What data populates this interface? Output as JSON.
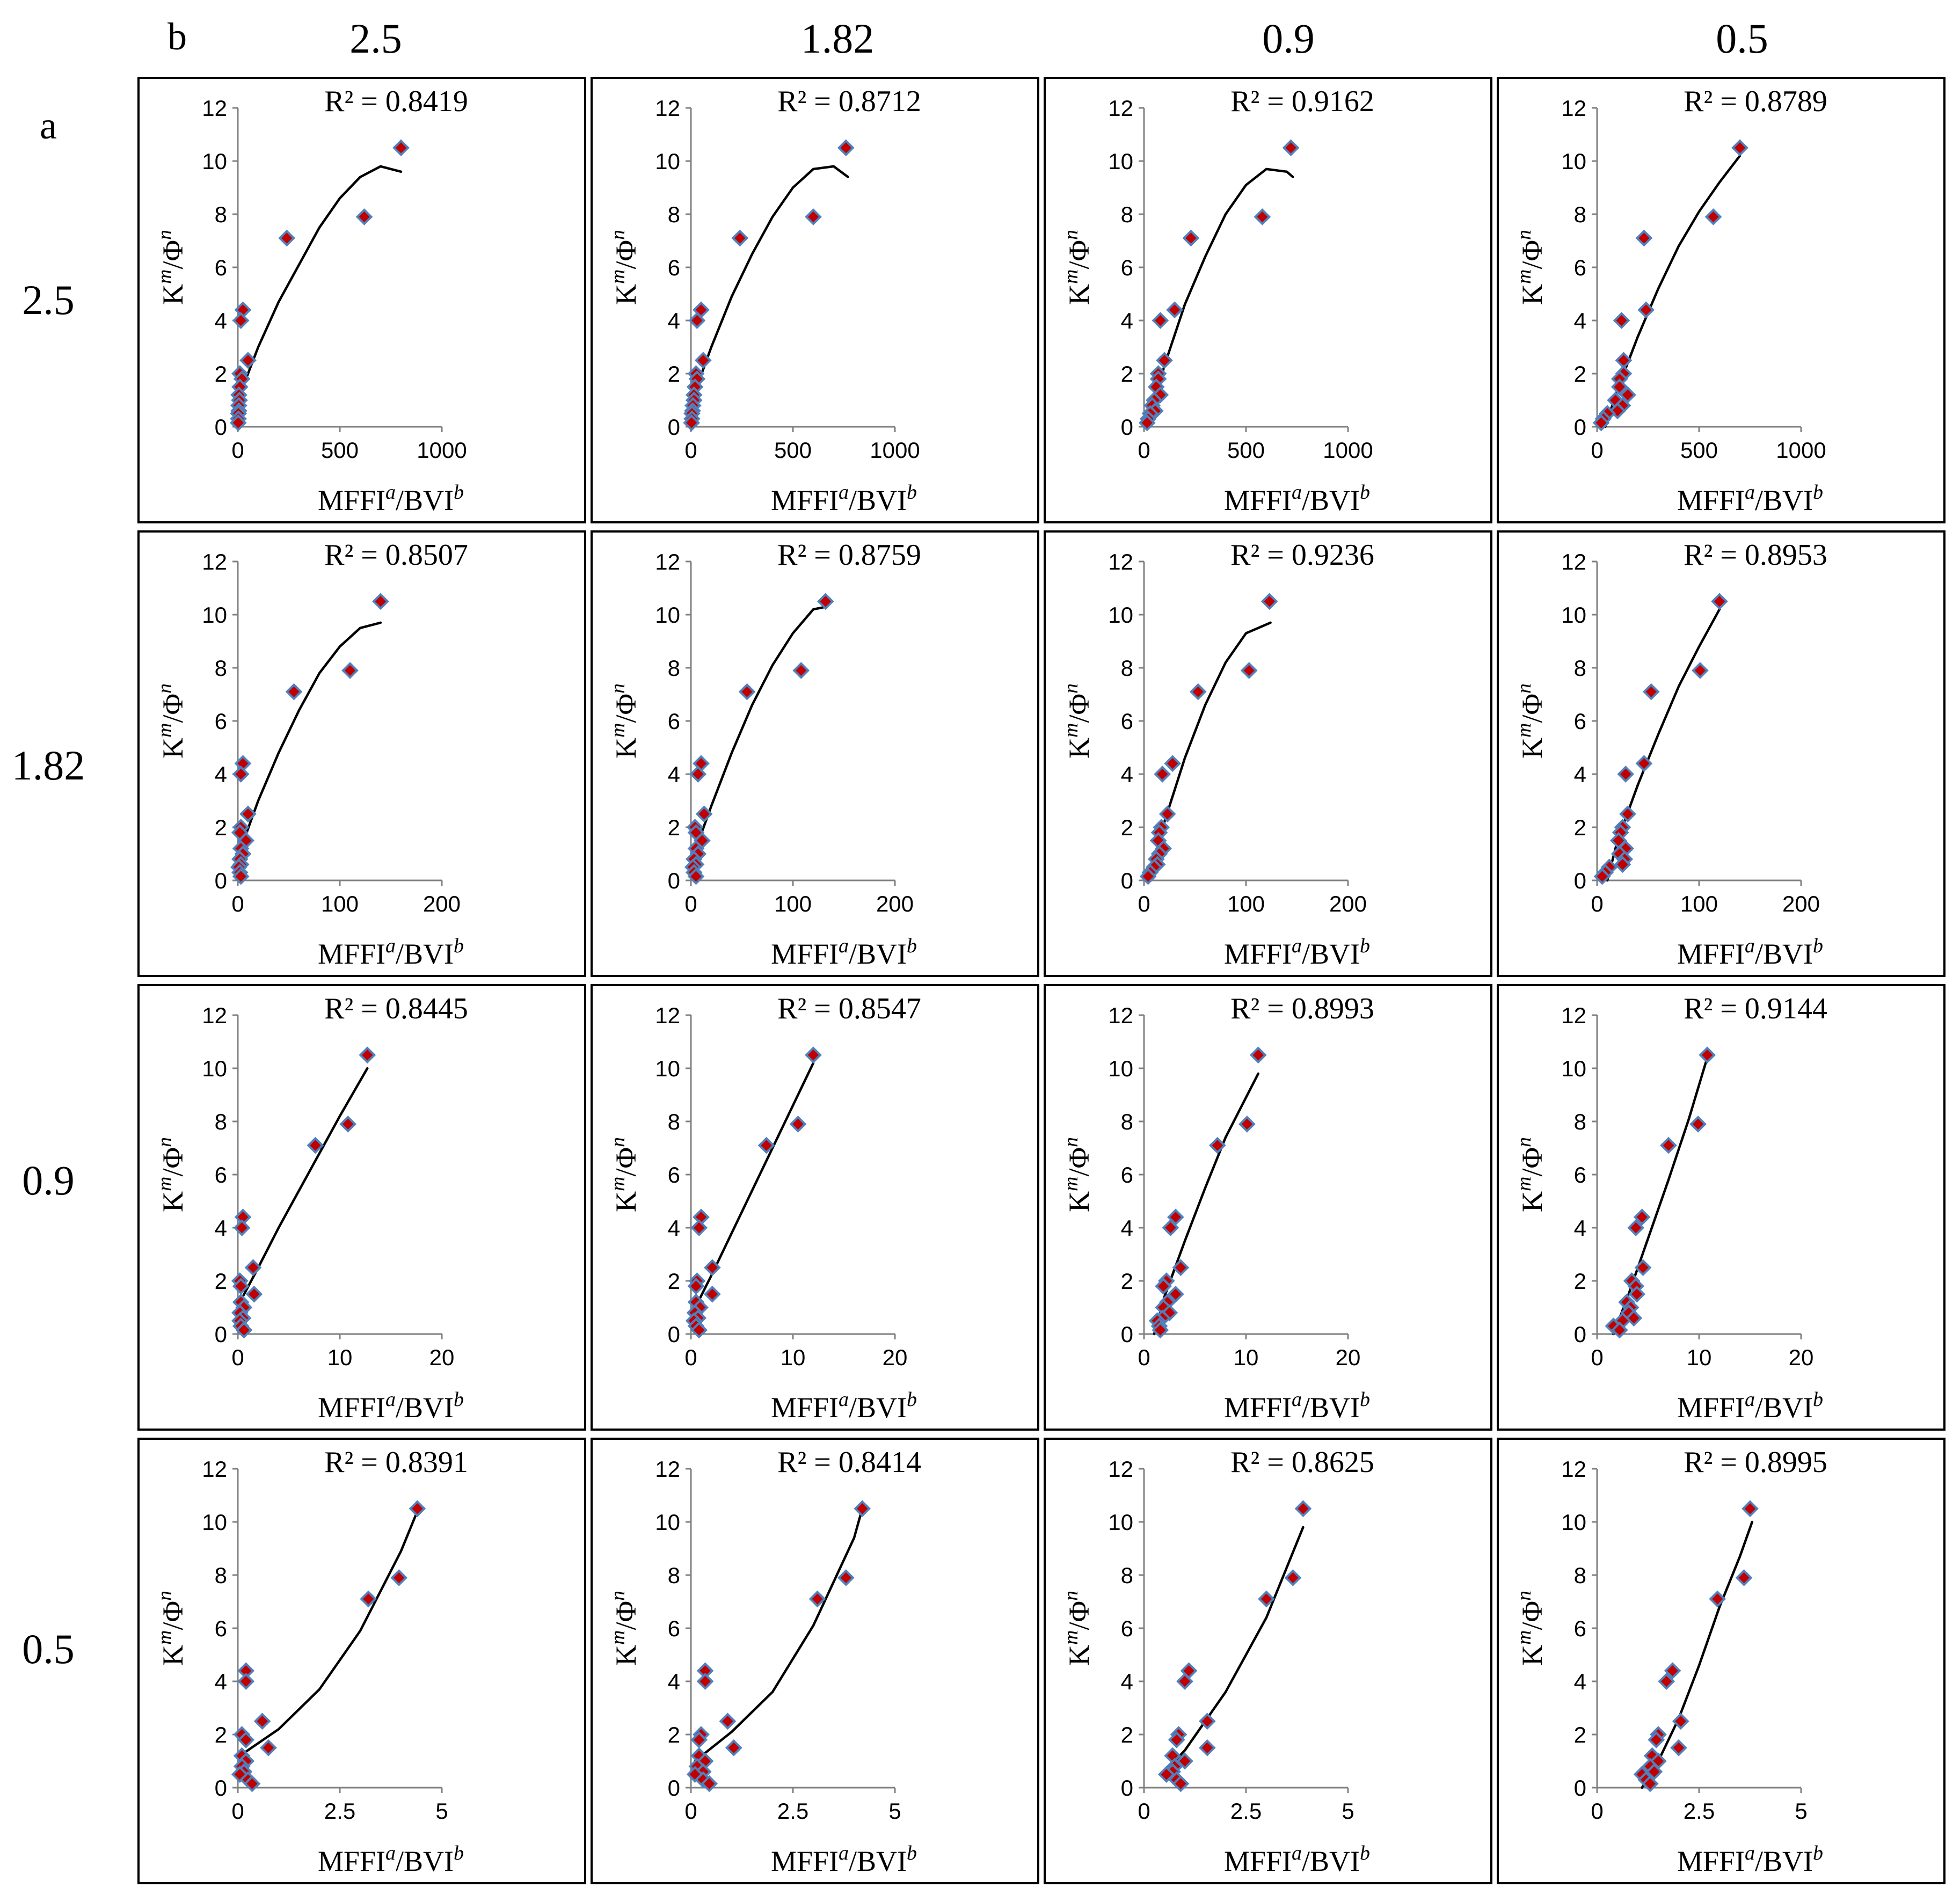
{
  "figure": {
    "corner_label_b": "b",
    "corner_label_a": "a",
    "col_headers": [
      "2.5",
      "1.82",
      "0.9",
      "0.5"
    ],
    "row_headers": [
      "2.5",
      "1.82",
      "0.9",
      "0.5"
    ],
    "xlabel": "MFFI",
    "xlabel_sup1": "a",
    "xlabel_mid": "/BVI",
    "xlabel_sup2": "b",
    "ylabel": "K",
    "ylabel_sup1": "m",
    "ylabel_mid": "/Φ",
    "ylabel_sup2": "n",
    "marker_fill": "#c00000",
    "marker_stroke": "#4f81bd",
    "line_color": "#000000"
  },
  "chart_data": {
    "type": "scatter",
    "y_values": [
      10.5,
      7.9,
      7.1,
      4.4,
      4.0,
      2.5,
      2.0,
      1.8,
      1.5,
      1.2,
      1.0,
      0.8,
      0.6,
      0.5,
      0.3,
      0.15
    ],
    "ylim": [
      0,
      12
    ],
    "yticks": [
      0,
      2,
      4,
      6,
      8,
      10,
      12
    ],
    "panels": [
      {
        "r2": "R² = 0.8419",
        "xlim": [
          0,
          1000
        ],
        "xticks": [
          "0",
          "500",
          "1000"
        ],
        "x_values": [
          800,
          620,
          240,
          25,
          15,
          50,
          10,
          20,
          10,
          5,
          8,
          5,
          5,
          3,
          3,
          2
        ],
        "trend": [
          [
            5,
            1.1
          ],
          [
            100,
            3.0
          ],
          [
            200,
            4.7
          ],
          [
            300,
            6.1
          ],
          [
            400,
            7.5
          ],
          [
            500,
            8.6
          ],
          [
            600,
            9.4
          ],
          [
            700,
            9.8
          ],
          [
            800,
            9.6
          ]
        ]
      },
      {
        "r2": "R² = 0.8712",
        "xlim": [
          0,
          1000
        ],
        "xticks": [
          "0",
          "500",
          "1000"
        ],
        "x_values": [
          760,
          600,
          240,
          50,
          30,
          60,
          25,
          30,
          20,
          15,
          15,
          10,
          8,
          5,
          5,
          3
        ],
        "trend": [
          [
            5,
            1.0
          ],
          [
            100,
            3.0
          ],
          [
            200,
            4.9
          ],
          [
            300,
            6.5
          ],
          [
            400,
            7.9
          ],
          [
            500,
            9.0
          ],
          [
            600,
            9.7
          ],
          [
            700,
            9.8
          ],
          [
            770,
            9.4
          ]
        ]
      },
      {
        "r2": "R² = 0.9162",
        "xlim": [
          0,
          1000
        ],
        "xticks": [
          "0",
          "500",
          "1000"
        ],
        "x_values": [
          720,
          580,
          230,
          150,
          80,
          100,
          70,
          70,
          60,
          80,
          50,
          40,
          55,
          30,
          20,
          15
        ],
        "trend": [
          [
            20,
            0.0
          ],
          [
            100,
            2.3
          ],
          [
            200,
            4.6
          ],
          [
            300,
            6.4
          ],
          [
            400,
            8.0
          ],
          [
            500,
            9.1
          ],
          [
            600,
            9.7
          ],
          [
            700,
            9.6
          ],
          [
            730,
            9.4
          ]
        ]
      },
      {
        "r2": "R² = 0.8789",
        "xlim": [
          0,
          1000
        ],
        "xticks": [
          "0",
          "500",
          "1000"
        ],
        "x_values": [
          700,
          570,
          230,
          240,
          120,
          130,
          130,
          110,
          110,
          150,
          90,
          125,
          100,
          50,
          30,
          20
        ],
        "trend": [
          [
            40,
            0.0
          ],
          [
            100,
            1.4
          ],
          [
            200,
            3.4
          ],
          [
            300,
            5.2
          ],
          [
            400,
            6.8
          ],
          [
            500,
            8.1
          ],
          [
            600,
            9.2
          ],
          [
            700,
            10.2
          ]
        ]
      },
      {
        "r2": "R² = 0.8507",
        "xlim": [
          0,
          200
        ],
        "xticks": [
          "0",
          "100",
          "200"
        ],
        "x_values": [
          140,
          110,
          55,
          5,
          3,
          10,
          3,
          2,
          8,
          3,
          5,
          2,
          3,
          1,
          2,
          3
        ],
        "trend": [
          [
            2,
            1.1
          ],
          [
            20,
            3.0
          ],
          [
            40,
            4.8
          ],
          [
            60,
            6.4
          ],
          [
            80,
            7.8
          ],
          [
            100,
            8.8
          ],
          [
            120,
            9.5
          ],
          [
            140,
            9.7
          ]
        ]
      },
      {
        "r2": "R² = 0.8759",
        "xlim": [
          0,
          200
        ],
        "xticks": [
          "0",
          "100",
          "200"
        ],
        "x_values": [
          132,
          108,
          55,
          10,
          7,
          13,
          4,
          5,
          11,
          5,
          7,
          3,
          5,
          2,
          3,
          5
        ],
        "trend": [
          [
            2,
            0.9
          ],
          [
            20,
            2.8
          ],
          [
            40,
            4.8
          ],
          [
            60,
            6.6
          ],
          [
            80,
            8.1
          ],
          [
            100,
            9.3
          ],
          [
            120,
            10.2
          ],
          [
            133,
            10.3
          ]
        ]
      },
      {
        "r2": "R² = 0.9236",
        "xlim": [
          0,
          200
        ],
        "xticks": [
          "0",
          "100",
          "200"
        ],
        "x_values": [
          123,
          103,
          53,
          28,
          18,
          23,
          17,
          15,
          14,
          19,
          15,
          12,
          13,
          10,
          6,
          4
        ],
        "trend": [
          [
            5,
            0.0
          ],
          [
            20,
            2.2
          ],
          [
            40,
            4.6
          ],
          [
            60,
            6.6
          ],
          [
            80,
            8.2
          ],
          [
            100,
            9.3
          ],
          [
            124,
            9.7
          ]
        ]
      },
      {
        "r2": "R² = 0.8953",
        "xlim": [
          0,
          200
        ],
        "xticks": [
          "0",
          "100",
          "200"
        ],
        "x_values": [
          120,
          101,
          53,
          46,
          28,
          30,
          25,
          23,
          21,
          28,
          22,
          27,
          25,
          12,
          8,
          5
        ],
        "trend": [
          [
            10,
            0.0
          ],
          [
            20,
            1.5
          ],
          [
            40,
            3.6
          ],
          [
            60,
            5.5
          ],
          [
            80,
            7.3
          ],
          [
            100,
            8.8
          ],
          [
            120,
            10.2
          ]
        ]
      },
      {
        "r2": "R² = 0.8445",
        "xlim": [
          0,
          20
        ],
        "xticks": [
          "0",
          "10",
          "20"
        ],
        "x_values": [
          12.7,
          10.8,
          7.6,
          0.5,
          0.4,
          1.5,
          0.2,
          0.3,
          1.6,
          0.3,
          0.6,
          0.2,
          0.5,
          0.2,
          0.3,
          0.6
        ],
        "trend": [
          [
            0.2,
            1.2
          ],
          [
            2,
            2.5
          ],
          [
            4,
            4.0
          ],
          [
            6,
            5.4
          ],
          [
            8,
            6.8
          ],
          [
            10,
            8.2
          ],
          [
            12.7,
            10.0
          ]
        ]
      },
      {
        "r2": "R² = 0.8547",
        "xlim": [
          0,
          20
        ],
        "xticks": [
          "0",
          "10",
          "20"
        ],
        "x_values": [
          12.0,
          10.5,
          7.4,
          1.0,
          0.8,
          2.1,
          0.6,
          0.5,
          2.1,
          0.5,
          0.9,
          0.4,
          0.7,
          0.3,
          0.5,
          0.8
        ],
        "trend": [
          [
            0.3,
            0.9
          ],
          [
            2,
            2.2
          ],
          [
            4,
            3.8
          ],
          [
            6,
            5.4
          ],
          [
            8,
            7.0
          ],
          [
            10,
            8.6
          ],
          [
            12,
            10.2
          ]
        ]
      },
      {
        "r2": "R² = 0.8993",
        "xlim": [
          0,
          20
        ],
        "xticks": [
          "0",
          "10",
          "20"
        ],
        "x_values": [
          11.2,
          10.1,
          7.2,
          3.1,
          2.6,
          3.6,
          2.2,
          1.9,
          3.1,
          2.3,
          1.9,
          2.5,
          1.8,
          1.3,
          1.5,
          1.6
        ],
        "trend": [
          [
            1.0,
            0.0
          ],
          [
            2,
            1.4
          ],
          [
            4,
            3.5
          ],
          [
            6,
            5.5
          ],
          [
            8,
            7.4
          ],
          [
            10,
            8.9
          ],
          [
            11.2,
            9.8
          ]
        ]
      },
      {
        "r2": "R² = 0.9144",
        "xlim": [
          0,
          20
        ],
        "xticks": [
          "0",
          "10",
          "20"
        ],
        "x_values": [
          10.8,
          9.9,
          7.0,
          4.4,
          3.8,
          4.5,
          3.4,
          3.8,
          3.9,
          2.9,
          3.3,
          3.1,
          3.6,
          2.5,
          1.6,
          2.2
        ],
        "trend": [
          [
            1.6,
            0.0
          ],
          [
            3,
            1.4
          ],
          [
            5,
            3.6
          ],
          [
            7,
            5.8
          ],
          [
            9,
            8.1
          ],
          [
            10.8,
            10.4
          ]
        ]
      },
      {
        "r2": "R² = 0.8391",
        "xlim": [
          0,
          5
        ],
        "xticks": [
          "0",
          "2.5",
          "5"
        ],
        "x_values": [
          4.4,
          3.95,
          3.2,
          0.2,
          0.2,
          0.6,
          0.1,
          0.2,
          0.75,
          0.1,
          0.2,
          0.1,
          0.15,
          0.05,
          0.25,
          0.35
        ],
        "trend": [
          [
            0.05,
            1.2
          ],
          [
            1,
            2.2
          ],
          [
            2,
            3.7
          ],
          [
            3,
            5.9
          ],
          [
            4,
            8.9
          ],
          [
            4.4,
            10.4
          ]
        ]
      },
      {
        "r2": "R² = 0.8414",
        "xlim": [
          0,
          5
        ],
        "xticks": [
          "0",
          "2.5",
          "5"
        ],
        "x_values": [
          4.2,
          3.8,
          3.1,
          0.35,
          0.35,
          0.9,
          0.25,
          0.2,
          1.05,
          0.2,
          0.35,
          0.15,
          0.3,
          0.1,
          0.3,
          0.45
        ],
        "trend": [
          [
            0.1,
            1.0
          ],
          [
            1,
            2.1
          ],
          [
            2,
            3.6
          ],
          [
            3,
            6.1
          ],
          [
            4,
            9.4
          ],
          [
            4.2,
            10.5
          ]
        ]
      },
      {
        "r2": "R² = 0.8625",
        "xlim": [
          0,
          5
        ],
        "xticks": [
          "0",
          "2.5",
          "5"
        ],
        "x_values": [
          3.9,
          3.65,
          3.0,
          1.1,
          1.0,
          1.55,
          0.85,
          0.8,
          1.55,
          0.7,
          1.0,
          0.75,
          0.7,
          0.55,
          0.8,
          0.9
        ],
        "trend": [
          [
            0.5,
            0.6
          ],
          [
            1,
            1.4
          ],
          [
            2,
            3.6
          ],
          [
            3,
            6.4
          ],
          [
            3.9,
            9.8
          ]
        ]
      },
      {
        "r2": "R² = 0.8995",
        "xlim": [
          0,
          5
        ],
        "xticks": [
          "0",
          "2.5",
          "5"
        ],
        "x_values": [
          3.75,
          3.6,
          2.95,
          1.85,
          1.7,
          2.05,
          1.5,
          1.45,
          2.0,
          1.35,
          1.5,
          1.3,
          1.4,
          1.1,
          1.2,
          1.3
        ],
        "trend": [
          [
            1.1,
            0.0
          ],
          [
            1.5,
            1.0
          ],
          [
            2,
            2.6
          ],
          [
            2.5,
            4.6
          ],
          [
            3,
            6.8
          ],
          [
            3.5,
            8.7
          ],
          [
            3.8,
            10.0
          ]
        ]
      }
    ]
  }
}
